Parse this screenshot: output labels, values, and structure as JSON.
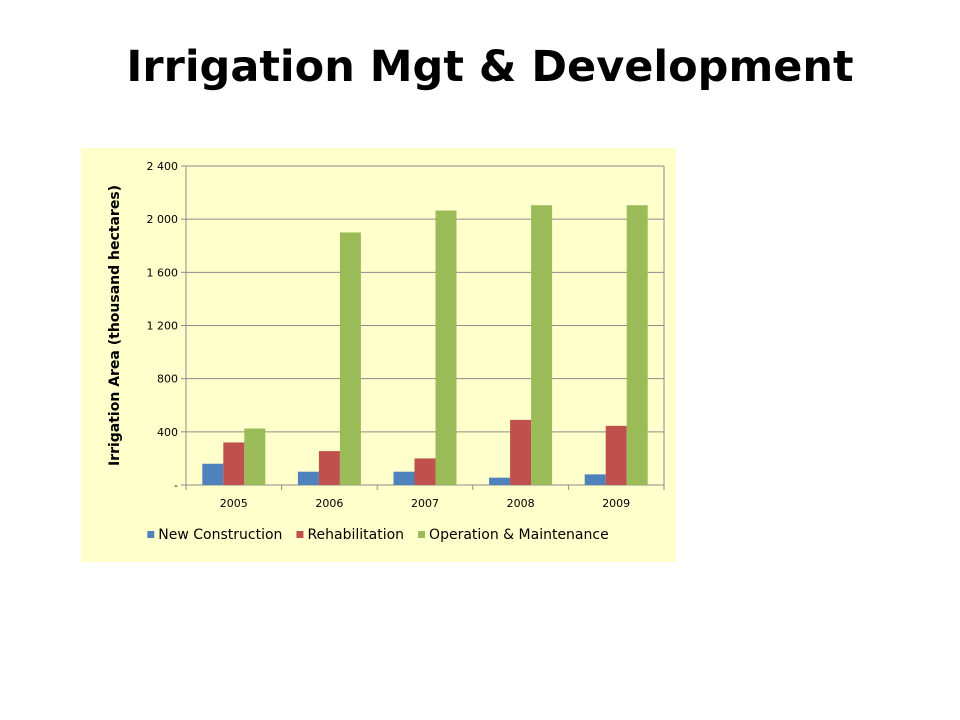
{
  "slide": {
    "title": "Irrigation Mgt & Development"
  },
  "chart_data": {
    "type": "bar",
    "title": "",
    "xlabel": "",
    "ylabel": "Irrigation Area (thousand hectares)",
    "categories": [
      "2005",
      "2006",
      "2007",
      "2008",
      "2009"
    ],
    "ylim": [
      0,
      2400
    ],
    "yticks": [
      0,
      400,
      800,
      1200,
      1600,
      2000,
      2400
    ],
    "ytick_labels": [
      "-",
      "400",
      "800",
      "1 200",
      "1 600",
      "2 000",
      "2 400"
    ],
    "grid": true,
    "legend_position": "bottom",
    "series": [
      {
        "name": "New Construction",
        "color": "#4f81bd",
        "values": [
          160,
          100,
          100,
          55,
          80
        ]
      },
      {
        "name": "Rehabilitation",
        "color": "#c0504d",
        "values": [
          320,
          255,
          200,
          490,
          445
        ]
      },
      {
        "name": "Operation & Maintenance",
        "color": "#9bbb59",
        "values": [
          425,
          1900,
          2065,
          2105,
          2105
        ]
      }
    ]
  }
}
